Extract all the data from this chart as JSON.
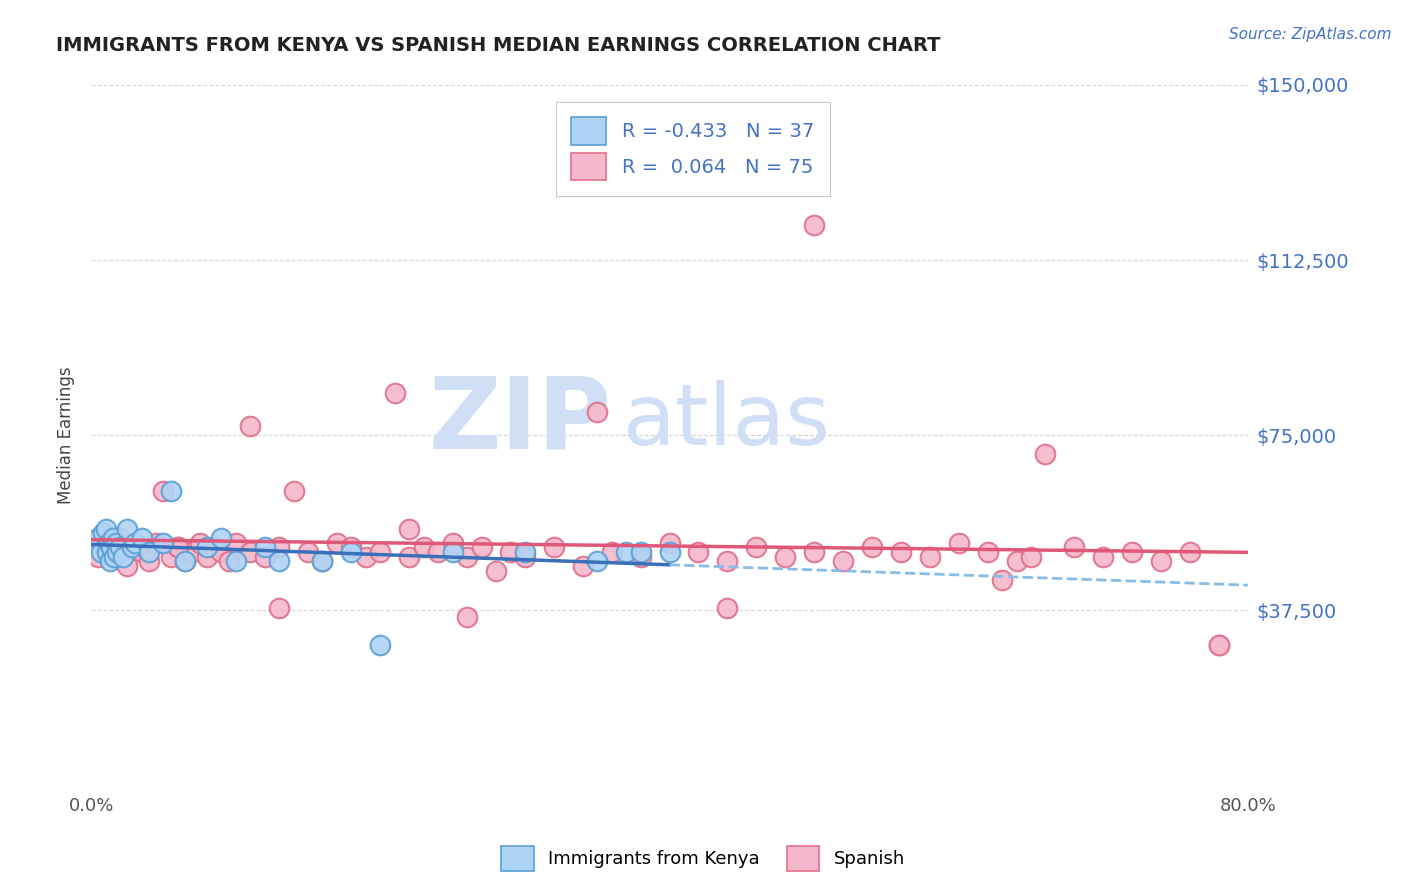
{
  "title": "IMMIGRANTS FROM KENYA VS SPANISH MEDIAN EARNINGS CORRELATION CHART",
  "source_text": "Source: ZipAtlas.com",
  "ylabel": "Median Earnings",
  "xlim": [
    0.0,
    80.0
  ],
  "ylim": [
    0,
    150000
  ],
  "yticks": [
    0,
    37500,
    75000,
    112500,
    150000
  ],
  "ytick_labels": [
    "",
    "$37,500",
    "$75,000",
    "$112,500",
    "$150,000"
  ],
  "kenya_color": "#aed4f5",
  "kenya_edge_color": "#5b9fd4",
  "spanish_color": "#f5b8cc",
  "spanish_edge_color": "#e0708a",
  "kenya_line_color": "#3a6fba",
  "kenya_dash_color": "#88bce8",
  "spanish_line_color": "#e05878",
  "R_kenya": -0.433,
  "N_kenya": 37,
  "R_spanish": 0.064,
  "N_spanish": 75,
  "background_color": "#ffffff",
  "grid_color": "#cccccc",
  "title_color": "#222222",
  "axis_label_color": "#444444",
  "ytick_color": "#4472c4",
  "watermark_color": "#d0dff5",
  "kenya_scatter_x": [
    0.3,
    0.5,
    0.7,
    0.8,
    1.0,
    1.1,
    1.2,
    1.3,
    1.4,
    1.5,
    1.6,
    1.7,
    1.8,
    2.0,
    2.2,
    2.5,
    2.8,
    3.0,
    3.5,
    4.0,
    5.0,
    5.5,
    6.5,
    8.0,
    9.0,
    10.0,
    12.0,
    13.0,
    16.0,
    18.0,
    20.0,
    25.0,
    30.0,
    35.0,
    37.0,
    38.0,
    40.0
  ],
  "kenya_scatter_y": [
    52000,
    53000,
    50000,
    54000,
    55000,
    50000,
    52000,
    48000,
    51000,
    53000,
    49000,
    52000,
    50000,
    51000,
    49000,
    55000,
    51000,
    52000,
    53000,
    50000,
    52000,
    63000,
    48000,
    51000,
    53000,
    48000,
    51000,
    48000,
    48000,
    50000,
    30000,
    50000,
    50000,
    48000,
    50000,
    50000,
    50000
  ],
  "spanish_scatter_x": [
    0.5,
    1.0,
    1.5,
    2.0,
    2.5,
    3.0,
    3.5,
    4.0,
    4.5,
    5.0,
    5.5,
    6.0,
    6.5,
    7.0,
    7.5,
    8.0,
    8.5,
    9.0,
    9.5,
    10.0,
    11.0,
    12.0,
    13.0,
    14.0,
    15.0,
    16.0,
    17.0,
    18.0,
    19.0,
    20.0,
    21.0,
    22.0,
    23.0,
    24.0,
    25.0,
    26.0,
    27.0,
    28.0,
    29.0,
    30.0,
    32.0,
    34.0,
    36.0,
    38.0,
    40.0,
    42.0,
    44.0,
    46.0,
    48.0,
    50.0,
    52.0,
    54.0,
    56.0,
    58.0,
    60.0,
    62.0,
    64.0,
    65.0,
    66.0,
    68.0,
    70.0,
    72.0,
    74.0,
    76.0,
    78.0,
    50.0,
    35.0,
    22.0,
    11.0,
    6.0,
    13.0,
    26.0,
    44.0,
    63.0,
    78.0
  ],
  "spanish_scatter_y": [
    49000,
    52000,
    50000,
    53000,
    47000,
    51000,
    50000,
    48000,
    52000,
    63000,
    49000,
    51000,
    48000,
    50000,
    52000,
    49000,
    51000,
    50000,
    48000,
    52000,
    50000,
    49000,
    51000,
    63000,
    50000,
    48000,
    52000,
    51000,
    49000,
    50000,
    84000,
    49000,
    51000,
    50000,
    52000,
    49000,
    51000,
    46000,
    50000,
    49000,
    51000,
    47000,
    50000,
    49000,
    52000,
    50000,
    48000,
    51000,
    49000,
    50000,
    48000,
    51000,
    50000,
    49000,
    52000,
    50000,
    48000,
    49000,
    71000,
    51000,
    49000,
    50000,
    48000,
    50000,
    30000,
    120000,
    80000,
    55000,
    77000,
    51000,
    38000,
    36000,
    38000,
    44000,
    30000
  ]
}
